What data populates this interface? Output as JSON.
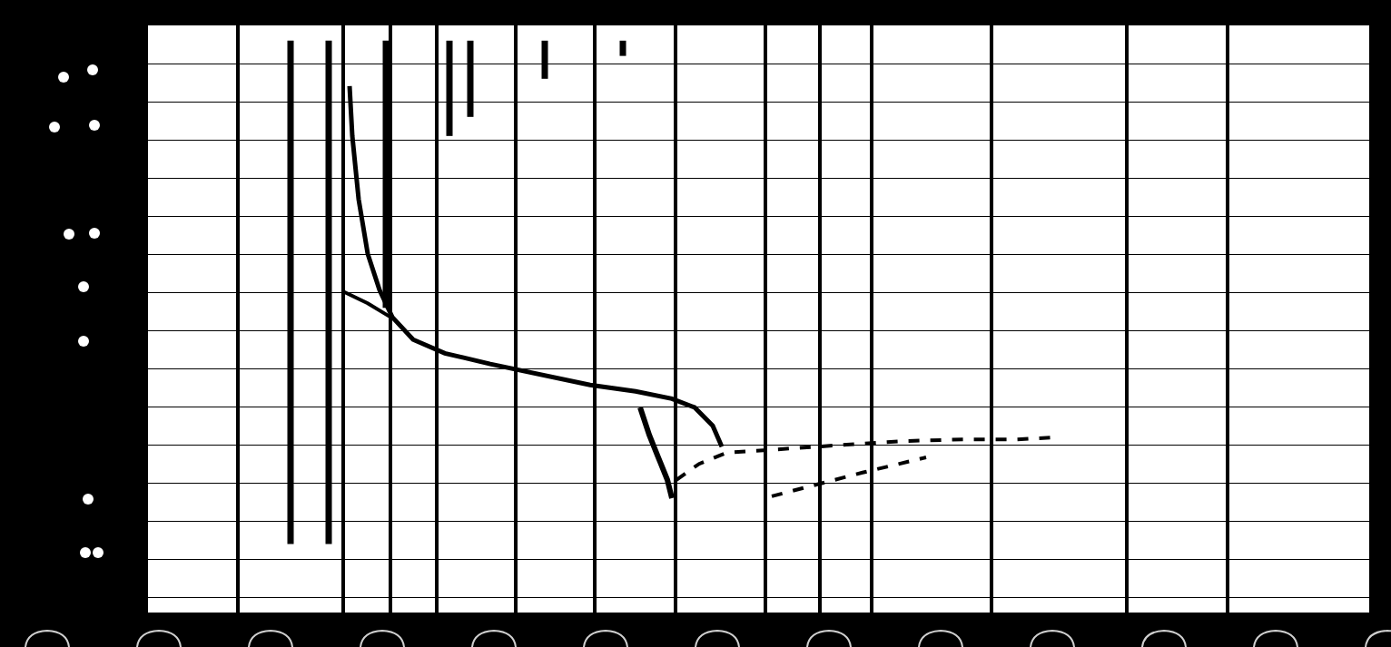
{
  "chart_data": {
    "type": "line",
    "xlim": [
      0,
      134.5
    ],
    "xticks": [
      9.9,
      21.5,
      26.7,
      31.8,
      40.5,
      49.2,
      58.1,
      68,
      74,
      79.7,
      92.9,
      107.8,
      118.9
    ],
    "ylim": [
      -0.4,
      15
    ],
    "yticks": [
      0,
      1,
      2,
      3,
      4,
      5,
      6,
      7,
      8,
      9,
      10,
      11,
      12,
      13,
      14
    ],
    "grid": true,
    "tick_labels": false,
    "color": "#000000",
    "series": [
      {
        "x": [
          22.2,
          22.5,
          23.2,
          24.2,
          25.5,
          26.9,
          29.2,
          32.7,
          37.7,
          43.7,
          48.7,
          53.7,
          57.7,
          60.2,
          62.2,
          63.2
        ],
        "values": [
          13.41,
          12.1,
          10.44,
          9.01,
          8.06,
          7.35,
          6.76,
          6.4,
          6.12,
          5.81,
          5.57,
          5.4,
          5.21,
          4.98,
          4.5,
          3.95
        ],
        "line_style": "solid"
      },
      {
        "x": [
          21.5,
          24.2,
          26.7
        ],
        "values": [
          8.02,
          7.71,
          7.35
        ],
        "line_style": "solid"
      },
      {
        "x": [
          54.2,
          55.2,
          56.2,
          57.2,
          57.7
        ],
        "values": [
          4.98,
          4.26,
          3.67,
          3.08,
          2.6
        ],
        "line_style": "solid"
      },
      {
        "x": [
          58.2,
          60.7,
          63.7,
          68.7,
          73.7,
          78.7,
          83.7,
          89.7,
          95.7,
          99.7
        ],
        "values": [
          3.08,
          3.5,
          3.79,
          3.88,
          3.95,
          4.03,
          4.1,
          4.14,
          4.14,
          4.19
        ],
        "line_style": "dash"
      },
      {
        "x": [
          68.7,
          73.7,
          78.7,
          85.7
        ],
        "values": [
          2.65,
          2.96,
          3.27,
          3.67
        ],
        "line_style": "dash"
      },
      {
        "x": [
          15.7,
          15.7,
          null,
          19.9,
          19.9,
          null,
          26.2,
          26.2,
          null,
          33.2,
          33.2,
          null,
          35.5,
          35.5,
          null,
          43.7,
          43.7,
          null,
          52.3,
          52.3
        ],
        "values": [
          14.6,
          1.4,
          null,
          14.6,
          1.4,
          null,
          14.6,
          7.59,
          null,
          14.6,
          12.1,
          null,
          14.6,
          12.6,
          null,
          14.6,
          13.6,
          null,
          14.6,
          14.2
        ],
        "line_style": "solid"
      }
    ]
  }
}
